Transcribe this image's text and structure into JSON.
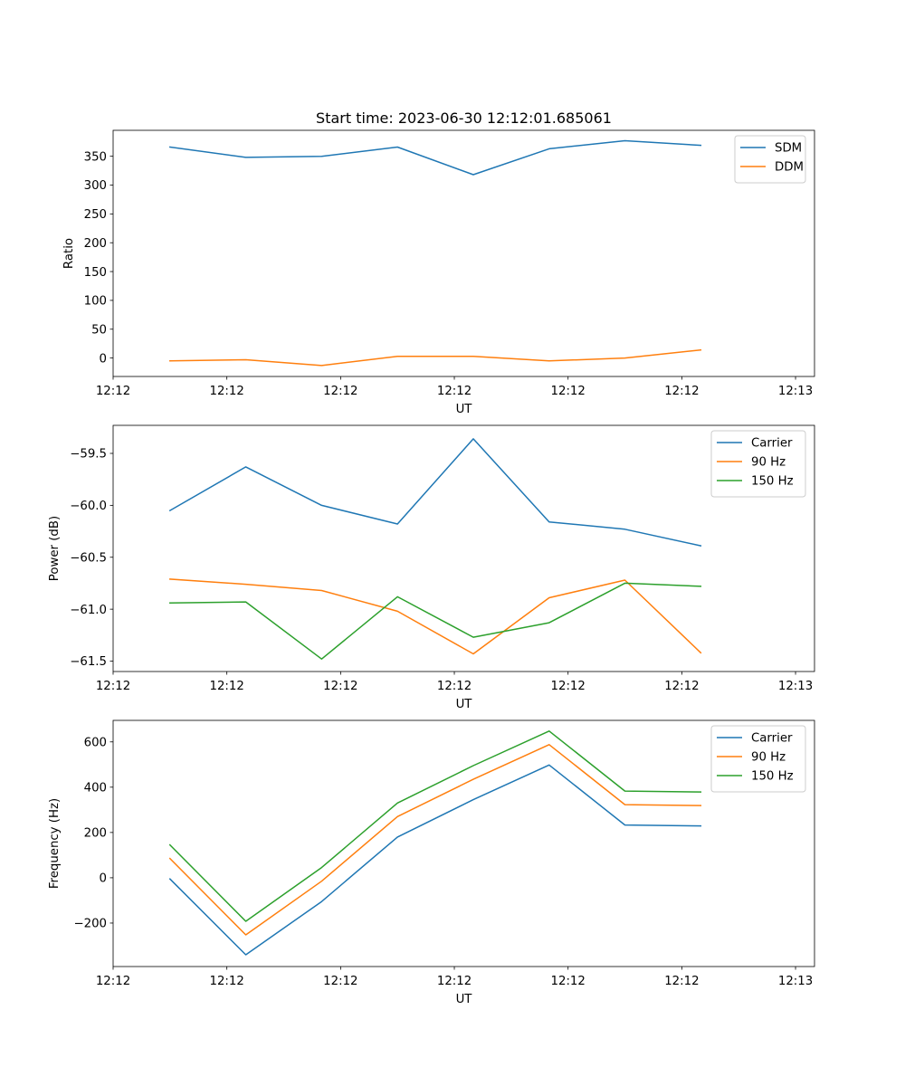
{
  "title": "Start time: 2023-06-30 12:12:01.685061",
  "chart_data": [
    {
      "type": "line",
      "ylabel": "Ratio",
      "xlabel": "UT",
      "x_positions": [
        0,
        1,
        2,
        3,
        4,
        5,
        6,
        7
      ],
      "xlim": [
        -0.75,
        8.5
      ],
      "xtick_positions": [
        -0.75,
        0.75,
        2.25,
        3.75,
        5.25,
        6.75,
        8.25
      ],
      "xtick_labels": [
        "12:12",
        "12:12",
        "12:12",
        "12:12",
        "12:12",
        "12:12",
        "12:13"
      ],
      "ylim": [
        -32,
        395
      ],
      "yticks": [
        0,
        50,
        100,
        150,
        200,
        250,
        300,
        350
      ],
      "series": [
        {
          "name": "SDM",
          "color": "#1f77b4",
          "values": [
            366,
            348,
            350,
            366,
            318,
            363,
            377,
            369
          ]
        },
        {
          "name": "DDM",
          "color": "#ff7f0e",
          "values": [
            -5,
            -3,
            -13,
            3,
            3,
            -5,
            0,
            14
          ]
        }
      ],
      "legend": "top-right"
    },
    {
      "type": "line",
      "ylabel": "Power (dB)",
      "xlabel": "UT",
      "x_positions": [
        0,
        1,
        2,
        3,
        4,
        5,
        6,
        7
      ],
      "xlim": [
        -0.75,
        8.5
      ],
      "xtick_positions": [
        -0.75,
        0.75,
        2.25,
        3.75,
        5.25,
        6.75,
        8.25
      ],
      "xtick_labels": [
        "12:12",
        "12:12",
        "12:12",
        "12:12",
        "12:12",
        "12:12",
        "12:13"
      ],
      "ylim": [
        -61.6,
        -59.23
      ],
      "yticks": [
        -61.5,
        -61.0,
        -60.5,
        -60.0,
        -59.5
      ],
      "ytick_labels": [
        "−61.5",
        "−61.0",
        "−60.5",
        "−60.0",
        "−59.5"
      ],
      "series": [
        {
          "name": "Carrier",
          "color": "#1f77b4",
          "values": [
            -60.05,
            -59.63,
            -60.0,
            -60.18,
            -59.36,
            -60.16,
            -60.23,
            -60.39
          ]
        },
        {
          "name": "90 Hz",
          "color": "#ff7f0e",
          "values": [
            -60.71,
            -60.76,
            -60.82,
            -61.02,
            -61.43,
            -60.89,
            -60.72,
            -61.42
          ]
        },
        {
          "name": "150 Hz",
          "color": "#2ca02c",
          "values": [
            -60.94,
            -60.93,
            -61.48,
            -60.88,
            -61.27,
            -61.13,
            -60.75,
            -60.78
          ]
        }
      ],
      "legend": "top-right"
    },
    {
      "type": "line",
      "ylabel": "Frequency (Hz)",
      "xlabel": "UT",
      "x_positions": [
        0,
        1,
        2,
        3,
        4,
        5,
        6,
        7
      ],
      "xlim": [
        -0.75,
        8.5
      ],
      "xtick_positions": [
        -0.75,
        0.75,
        2.25,
        3.75,
        5.25,
        6.75,
        8.25
      ],
      "xtick_labels": [
        "12:12",
        "12:12",
        "12:12",
        "12:12",
        "12:12",
        "12:12",
        "12:13"
      ],
      "ylim": [
        -392,
        695
      ],
      "yticks": [
        -200,
        0,
        200,
        400,
        600
      ],
      "ytick_labels": [
        "−200",
        "0",
        "200",
        "400",
        "600"
      ],
      "series": [
        {
          "name": "Carrier",
          "color": "#1f77b4",
          "values": [
            -5,
            -340,
            -105,
            180,
            345,
            498,
            233,
            229
          ]
        },
        {
          "name": "90 Hz",
          "color": "#ff7f0e",
          "values": [
            85,
            -252,
            -15,
            270,
            435,
            588,
            323,
            319
          ]
        },
        {
          "name": "150 Hz",
          "color": "#2ca02c",
          "values": [
            145,
            -192,
            45,
            330,
            495,
            648,
            383,
            379
          ]
        }
      ],
      "legend": "top-right"
    }
  ]
}
